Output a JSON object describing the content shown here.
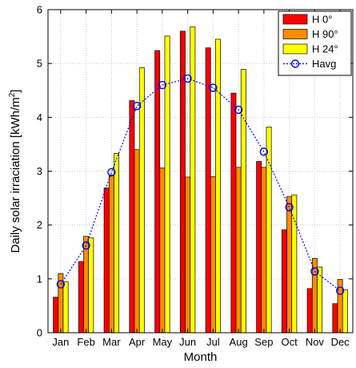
{
  "chart_data": {
    "type": "bar",
    "xlabel": "Month",
    "ylabel": "Daily solar irraciation [kWh/m",
    "ylabel_superscript": "2",
    "ylabel_suffix": "]",
    "ylim": [
      0,
      6
    ],
    "yticks": [
      "0",
      "1",
      "2",
      "3",
      "4",
      "5",
      "6"
    ],
    "grid": true,
    "legend_position": "top-right",
    "categories": [
      "Jan",
      "Feb",
      "Mar",
      "Apr",
      "May",
      "Jun",
      "Jul",
      "Aug",
      "Sep",
      "Oct",
      "Nov",
      "Dec"
    ],
    "series": [
      {
        "name": "H 0°",
        "kind": "bar",
        "color": "#ff0000",
        "values": [
          0.66,
          1.32,
          2.69,
          4.31,
          5.24,
          5.6,
          5.29,
          4.45,
          3.18,
          1.91,
          0.82,
          0.54
        ]
      },
      {
        "name": "H 90°",
        "kind": "bar",
        "color": "#ff8c00",
        "values": [
          1.1,
          1.79,
          2.93,
          3.4,
          3.06,
          2.89,
          2.9,
          3.07,
          3.07,
          2.53,
          1.38,
          0.99
        ]
      },
      {
        "name": "H 24°",
        "kind": "bar",
        "color": "#ffff00",
        "values": [
          0.95,
          1.76,
          3.33,
          4.92,
          5.51,
          5.68,
          5.45,
          4.89,
          3.82,
          2.56,
          1.22,
          0.8
        ]
      },
      {
        "name": "Havg",
        "kind": "line",
        "color": "#0000ff",
        "values": [
          0.9,
          1.62,
          2.98,
          4.21,
          4.6,
          4.72,
          4.55,
          4.14,
          3.36,
          2.33,
          1.14,
          0.78
        ]
      }
    ]
  }
}
